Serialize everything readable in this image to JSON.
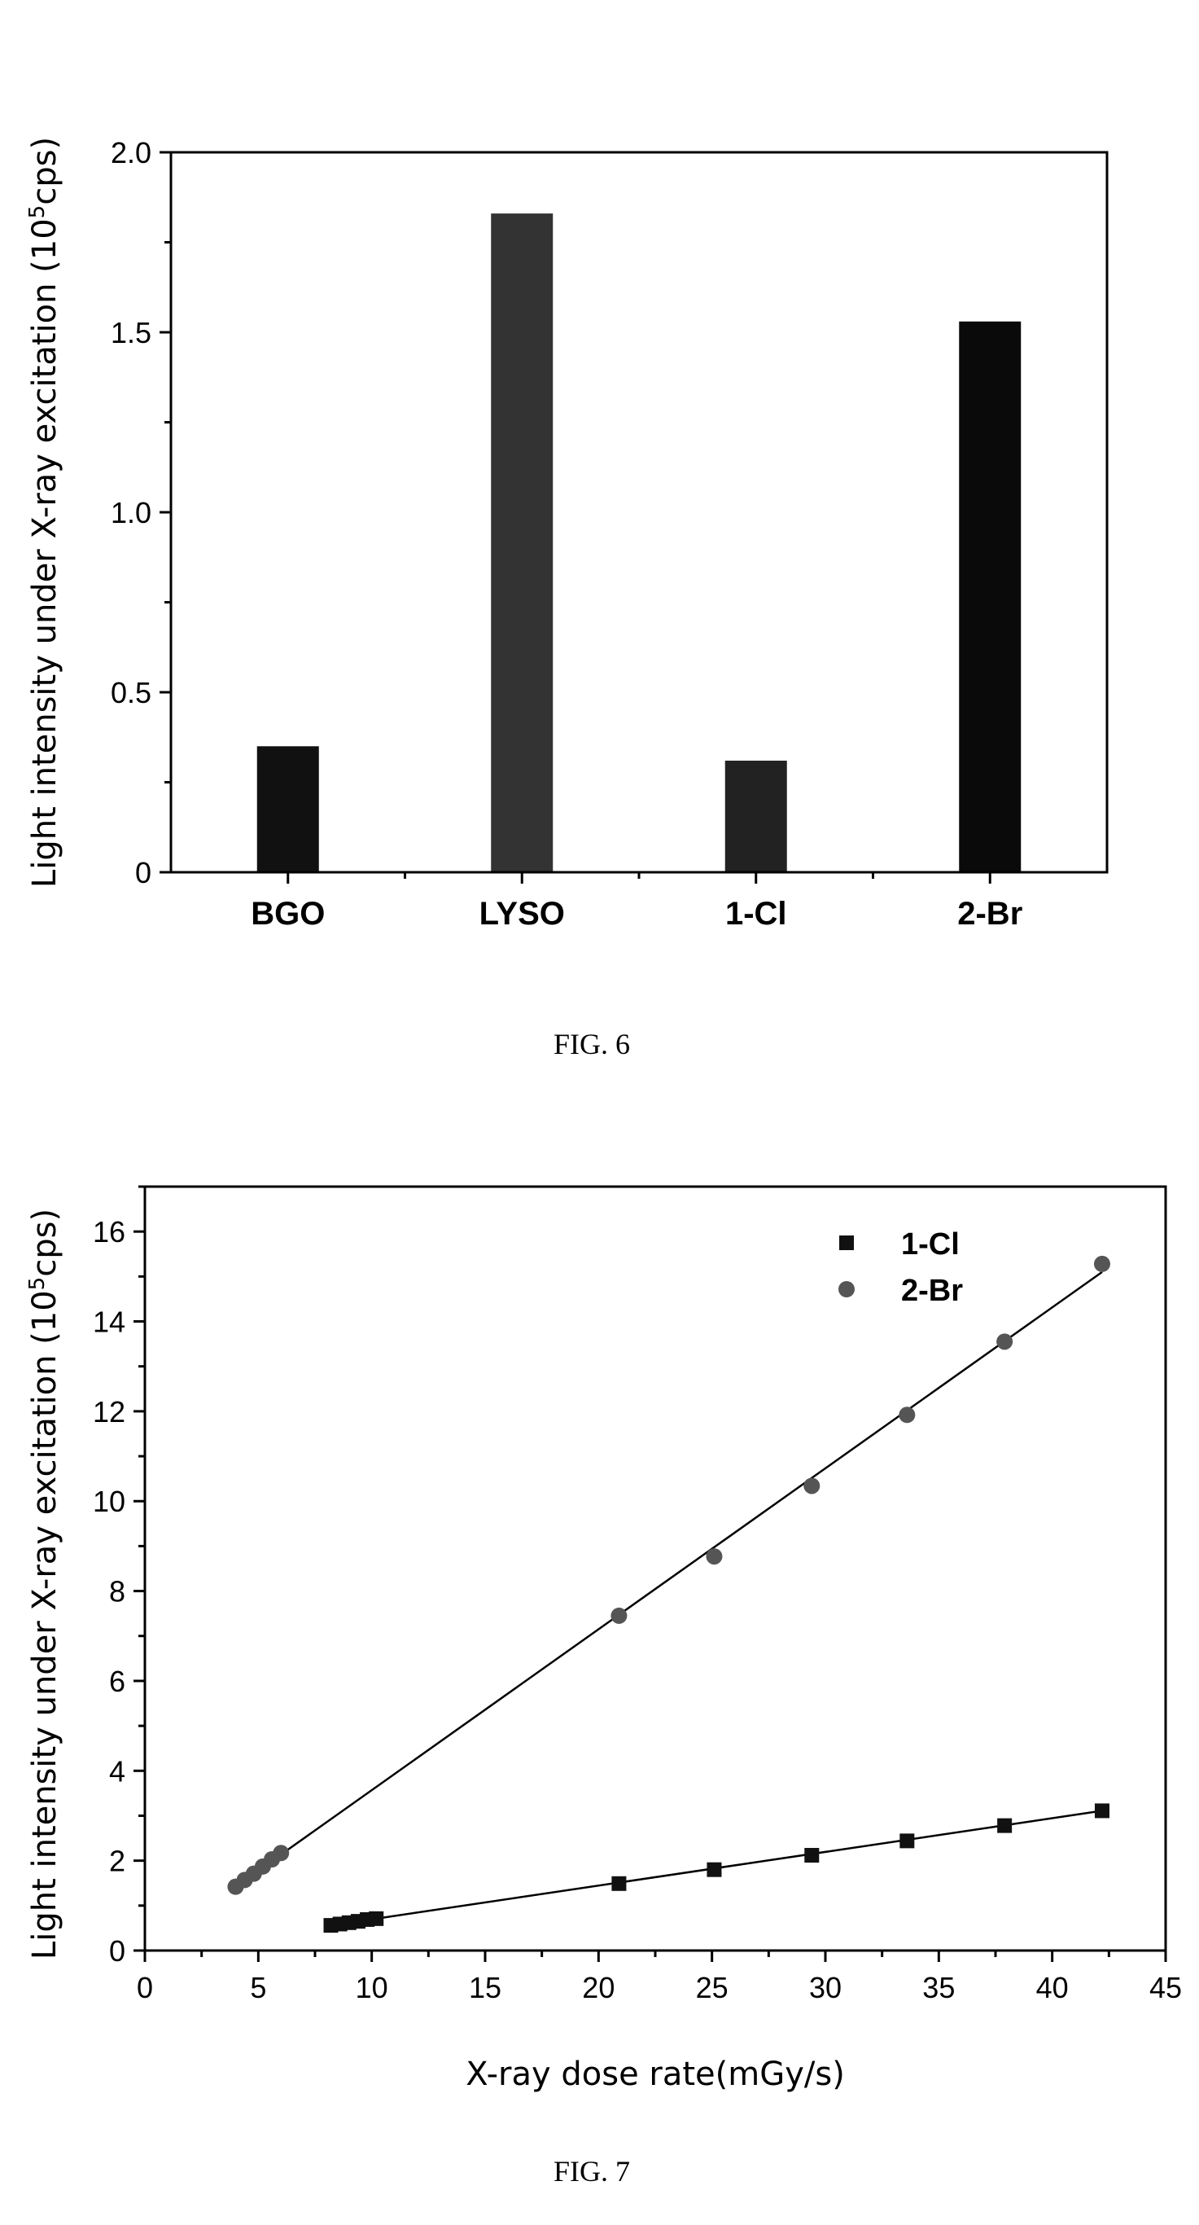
{
  "chart_data": [
    {
      "type": "bar",
      "categories": [
        "BGO",
        "LYSO",
        "1-Cl",
        "2-Br"
      ],
      "values": [
        0.35,
        1.83,
        0.31,
        1.53
      ],
      "ylabel": "Light intensity under X-ray excitation (10",
      "ylabel_sup": "5",
      "ylabel_end": "cps)",
      "ylim": [
        0,
        2.0
      ],
      "yticks": [
        "0",
        "0.5",
        "1.0",
        "1.5",
        "2.0"
      ],
      "yticks_values": [
        0,
        0.5,
        1.0,
        1.5,
        2.0
      ],
      "caption": "FIG. 6",
      "colors": {
        "bars": [
          "#111111",
          "#333333",
          "#222222",
          "#0a0a0a"
        ]
      }
    },
    {
      "type": "scatter",
      "xlabel": "X-ray dose rate(mGy/s)",
      "ylabel": "Light intensity under X-ray excitation (10",
      "ylabel_sup": "5",
      "ylabel_end": "cps)",
      "xlim": [
        0,
        45
      ],
      "ylim": [
        0,
        17
      ],
      "xticks": [
        "0",
        "5",
        "10",
        "15",
        "20",
        "25",
        "30",
        "35",
        "40",
        "45"
      ],
      "xticks_values": [
        0,
        5,
        10,
        15,
        20,
        25,
        30,
        35,
        40,
        45
      ],
      "yticks": [
        "0",
        "2",
        "4",
        "6",
        "8",
        "10",
        "12",
        "14",
        "16"
      ],
      "yticks_values": [
        0,
        2,
        4,
        6,
        8,
        10,
        12,
        14,
        16
      ],
      "legend_position": "top-right",
      "series": [
        {
          "name": "1-Cl",
          "marker": "square",
          "x": [
            8.2,
            8.6,
            9.0,
            9.4,
            9.8,
            10.2,
            20.9,
            25.1,
            29.4,
            33.6,
            37.9,
            42.2
          ],
          "y": [
            0.56,
            0.59,
            0.62,
            0.65,
            0.69,
            0.71,
            1.49,
            1.8,
            2.12,
            2.44,
            2.78,
            3.11
          ],
          "fit": [
            [
              8.2,
              0.56
            ],
            [
              42.2,
              3.11
            ]
          ]
        },
        {
          "name": "2-Br",
          "marker": "circle",
          "x": [
            4.0,
            4.4,
            4.8,
            5.2,
            5.6,
            6.0,
            20.9,
            25.1,
            29.4,
            33.6,
            37.9,
            42.2
          ],
          "y": [
            1.42,
            1.57,
            1.71,
            1.87,
            2.03,
            2.17,
            7.45,
            8.77,
            10.34,
            11.92,
            13.55,
            15.28
          ],
          "fit": [
            [
              4.0,
              1.42
            ],
            [
              42.2,
              15.1
            ]
          ]
        }
      ],
      "caption": "FIG. 7"
    }
  ]
}
